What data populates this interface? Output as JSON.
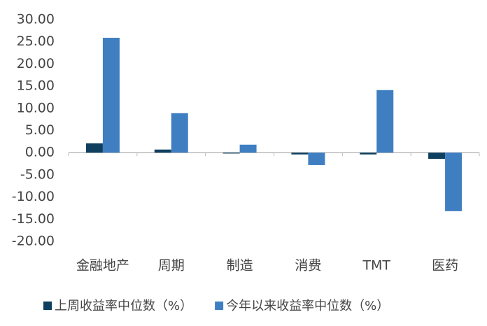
{
  "chart_data": {
    "type": "bar",
    "categories": [
      "金融地产",
      "周期",
      "制造",
      "消费",
      "TMT",
      "医药"
    ],
    "series": [
      {
        "name": "上周收益率中位数（%）",
        "color": "#0e3f5e",
        "values": [
          2.1,
          0.7,
          -0.2,
          -0.4,
          -0.4,
          -1.4
        ]
      },
      {
        "name": "今年以来收益率中位数（%）",
        "color": "#3f7fc1",
        "values": [
          25.9,
          8.9,
          1.8,
          -2.8,
          14.1,
          -13.2
        ]
      }
    ],
    "ylim": [
      -20,
      30
    ],
    "yticks": [
      {
        "value": -20,
        "label": "-20.00"
      },
      {
        "value": -15,
        "label": "-15.00"
      },
      {
        "value": -10,
        "label": "-10.00"
      },
      {
        "value": -5,
        "label": "-5.00"
      },
      {
        "value": 0,
        "label": "0.00"
      },
      {
        "value": 5,
        "label": "5.00"
      },
      {
        "value": 10,
        "label": "10.00"
      },
      {
        "value": 15,
        "label": "15.00"
      },
      {
        "value": 20,
        "label": "20.00"
      },
      {
        "value": 25,
        "label": "25.00"
      },
      {
        "value": 30,
        "label": "30.00"
      }
    ],
    "grid": false
  }
}
